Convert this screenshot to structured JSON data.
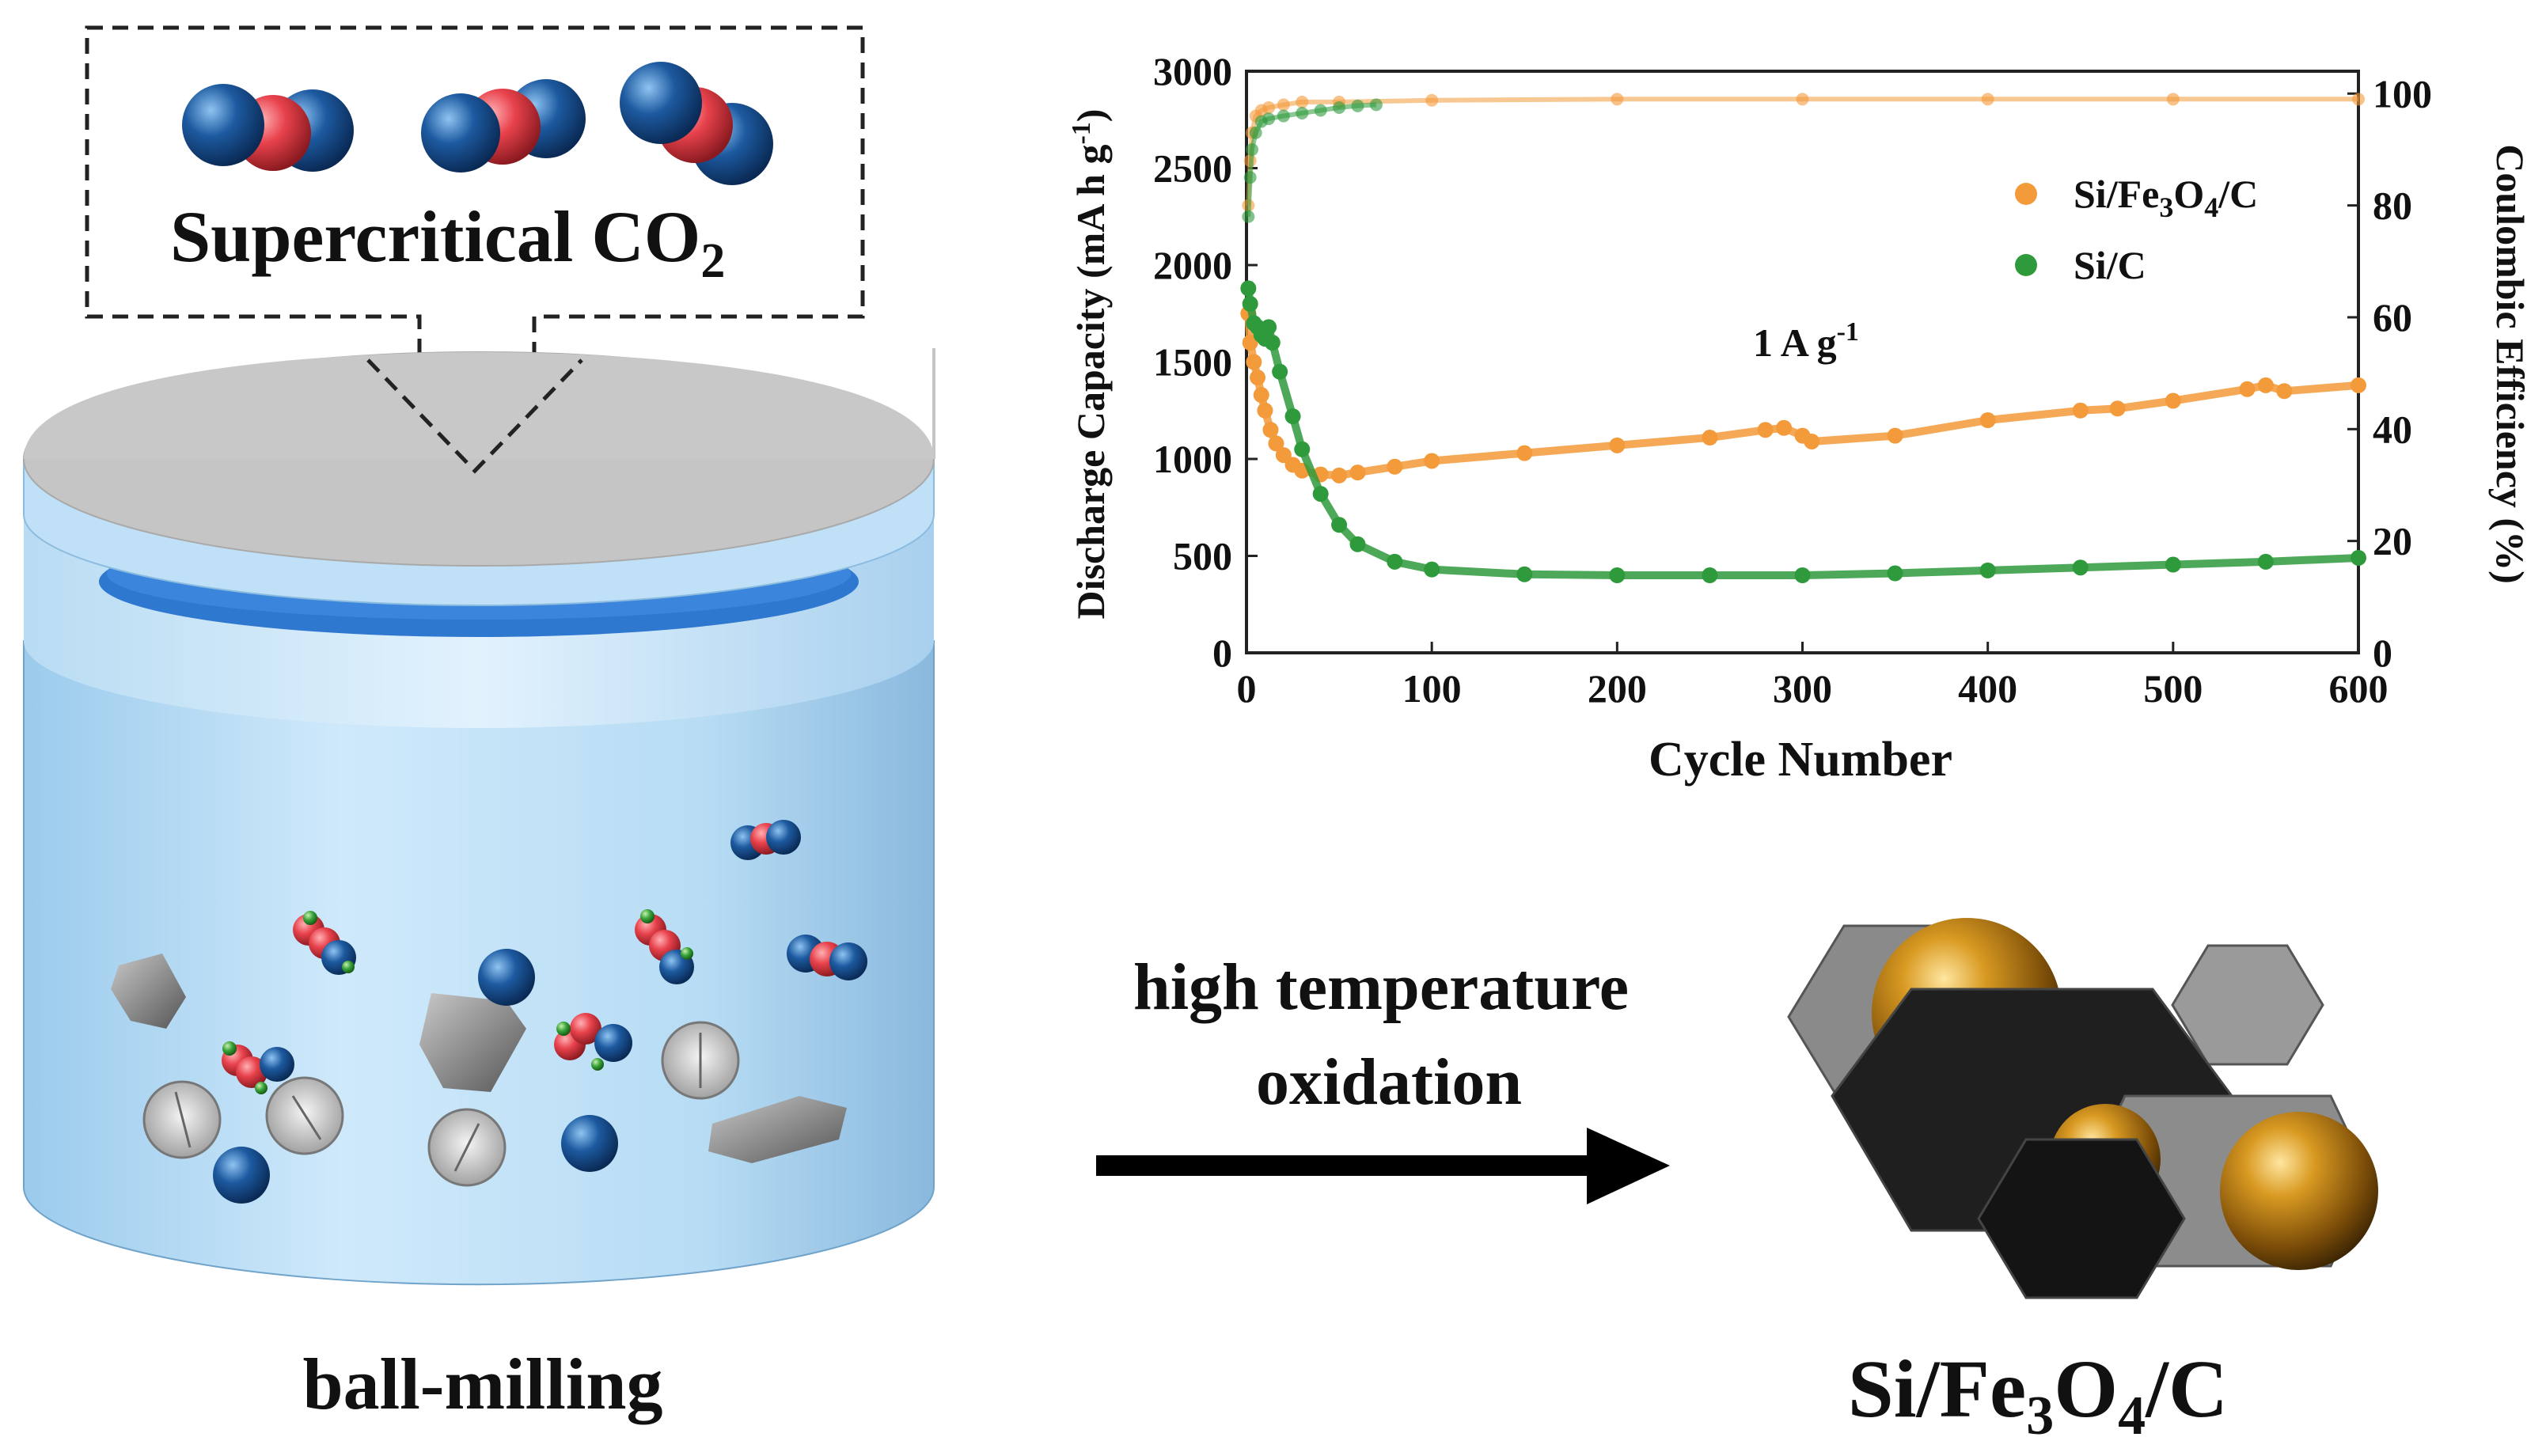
{
  "co2_box": {
    "label_main": "Supercritical CO",
    "label_sub": "2"
  },
  "process": {
    "ball_milling": "ball-milling",
    "oxidation_line1": "high temperature",
    "oxidation_line2": "oxidation"
  },
  "product": {
    "p1": "Si/Fe",
    "s1": "3",
    "p2": "O",
    "s2": "4",
    "p3": "/C"
  },
  "colors": {
    "orange": "#f39a3a",
    "green": "#2e9a3c",
    "co2_blue": "#1d5aa0",
    "co2_red": "#e8424c",
    "jar_blue": "#a9d6f1",
    "gold": "#c98a1a"
  },
  "chart_data": {
    "type": "scatter",
    "xlabel": "Cycle Number",
    "ylabel_left": {
      "main": "Discharge Capacity (mA h g",
      "sup": "-1",
      "close": ")"
    },
    "ylabel_right": "Coulombic Efficiency (%)",
    "annotation": {
      "main": "1 A g",
      "sup": "-1"
    },
    "xlim": [
      0,
      600
    ],
    "ylim_left": [
      0,
      3000
    ],
    "ylim_right": [
      0,
      104
    ],
    "x_ticks": [
      "0",
      "100",
      "200",
      "300",
      "400",
      "500",
      "600"
    ],
    "y_left_ticks": [
      "0",
      "500",
      "1000",
      "1500",
      "2000",
      "2500",
      "3000"
    ],
    "y_right_ticks": [
      "0",
      "20",
      "40",
      "60",
      "80",
      "100"
    ],
    "legend": {
      "position": "top-right"
    },
    "series": [
      {
        "name": "Si/Fe3O4/C",
        "name_parts": [
          "Si/Fe",
          "3",
          "O",
          "4",
          "/C"
        ],
        "color": "#f39a3a",
        "axis": "left",
        "x": [
          1,
          2,
          4,
          6,
          8,
          10,
          13,
          16,
          20,
          25,
          30,
          40,
          50,
          60,
          80,
          100,
          150,
          200,
          250,
          280,
          290,
          300,
          305,
          350,
          400,
          450,
          470,
          500,
          540,
          550,
          560,
          600
        ],
        "values": [
          1750,
          1600,
          1500,
          1420,
          1330,
          1250,
          1150,
          1080,
          1020,
          970,
          940,
          920,
          915,
          930,
          960,
          990,
          1030,
          1070,
          1110,
          1150,
          1160,
          1120,
          1090,
          1120,
          1200,
          1250,
          1260,
          1300,
          1360,
          1380,
          1350,
          1380
        ]
      },
      {
        "name": "Si/C",
        "color": "#2e9a3c",
        "axis": "left",
        "x": [
          1,
          2,
          4,
          6,
          8,
          10,
          12,
          14,
          18,
          25,
          30,
          40,
          50,
          60,
          80,
          100,
          150,
          200,
          250,
          300,
          350,
          400,
          450,
          500,
          550,
          600
        ],
        "values": [
          1880,
          1800,
          1700,
          1680,
          1640,
          1620,
          1680,
          1600,
          1450,
          1220,
          1050,
          820,
          660,
          560,
          470,
          430,
          405,
          400,
          400,
          400,
          410,
          425,
          440,
          455,
          470,
          490
        ]
      },
      {
        "name": "Si/Fe3O4/C CE",
        "color": "#f39a3a",
        "axis": "right",
        "x": [
          1,
          2,
          3,
          5,
          8,
          12,
          20,
          30,
          50,
          100,
          200,
          300,
          400,
          500,
          600
        ],
        "values": [
          80,
          88,
          93,
          96,
          97,
          97.5,
          98,
          98.5,
          98.5,
          98.8,
          99,
          99,
          99,
          99,
          99
        ]
      },
      {
        "name": "Si/C CE",
        "color": "#2e9a3c",
        "axis": "right",
        "x": [
          1,
          2,
          3,
          5,
          8,
          12,
          20,
          30,
          40,
          50,
          60,
          70
        ],
        "values": [
          78,
          85,
          90,
          93,
          95,
          95.5,
          96,
          96.5,
          97,
          97.5,
          97.8,
          98
        ]
      }
    ]
  }
}
